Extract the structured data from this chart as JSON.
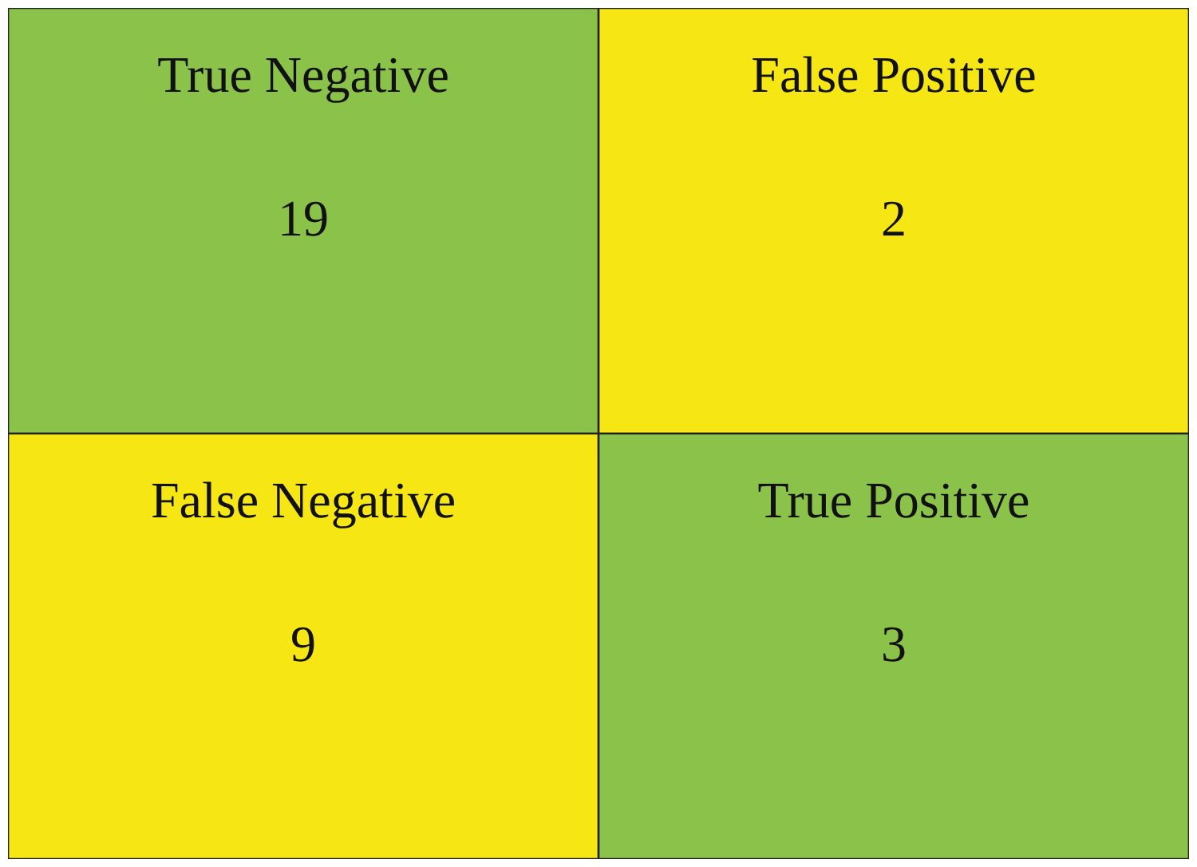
{
  "chart_data": {
    "type": "heatmap",
    "categories": [
      null,
      null
    ],
    "y_categories": [
      null,
      null
    ],
    "cells": [
      [
        19,
        2
      ],
      [
        9,
        3
      ]
    ],
    "data_labels": true,
    "annotations": [
      "True Negative",
      "False Positive",
      "False Negative",
      "True Positive"
    ],
    "colors": [
      [
        "#8bc34a",
        "#f5e614"
      ],
      [
        "#f5e614",
        "#8bc34a"
      ]
    ]
  }
}
